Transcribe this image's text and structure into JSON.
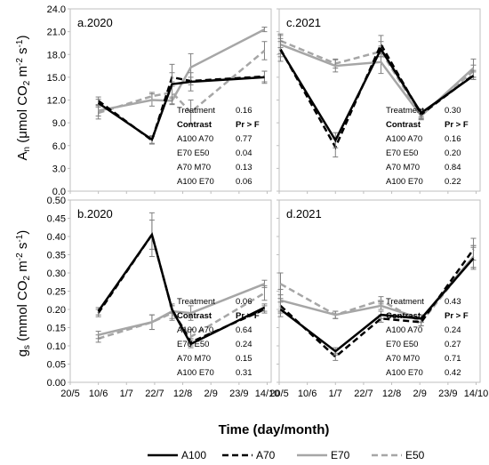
{
  "figure": {
    "xlabel": "Time (day/month)",
    "ylabel_top": "An (μmol CO2 m⁻² s⁻¹)",
    "ylabel_bottom": "gs (mmol CO2 m⁻² s⁻¹)"
  },
  "legend": {
    "placement": "bottom",
    "entries": [
      {
        "name": "A100",
        "color": "#000000",
        "dash": "solid"
      },
      {
        "name": "A70",
        "color": "#000000",
        "dash": "dashed"
      },
      {
        "name": "E70",
        "color": "#a6a6a6",
        "dash": "solid"
      },
      {
        "name": "E50",
        "color": "#a6a6a6",
        "dash": "dashed"
      }
    ]
  },
  "chart_data": [
    {
      "type": "line",
      "panel": "a.2020",
      "ylim": [
        0,
        24
      ],
      "yticks": [
        "0.0",
        "3.0",
        "6.0",
        "9.0",
        "12.0",
        "15.0",
        "18.0",
        "21.0",
        "24.0"
      ],
      "xlim_days": [
        140,
        290
      ],
      "series": [
        {
          "name": "A100",
          "x": [
            161,
            201,
            216,
            230,
            285
          ],
          "y": [
            11.6,
            6.8,
            14.1,
            14.4,
            15.0
          ],
          "err": [
            0.5,
            0.5,
            2.6,
            1.2,
            0.8
          ]
        },
        {
          "name": "A70",
          "x": [
            161,
            201,
            216,
            230,
            285
          ],
          "y": [
            11.9,
            6.7,
            15.0,
            14.5,
            15.1
          ],
          "err": [
            0.5,
            0.5,
            0.6,
            0.5,
            0.7
          ]
        },
        {
          "name": "E70",
          "x": [
            161,
            201,
            216,
            230,
            285
          ],
          "y": [
            10.6,
            12.0,
            11.9,
            16.3,
            21.3
          ],
          "err": [
            0.7,
            0.8,
            0.5,
            1.8,
            0.3
          ]
        },
        {
          "name": "E50",
          "x": [
            161,
            201,
            216,
            230,
            285
          ],
          "y": [
            10.3,
            12.5,
            13.0,
            10.4,
            18.5
          ],
          "err": [
            0.8,
            0.5,
            0.8,
            1.6,
            1.2
          ]
        }
      ],
      "stats": [
        {
          "label": "Treatment",
          "value": "0.16",
          "bold": false
        },
        {
          "label": "Contrast",
          "value": "Pr > F",
          "bold": true
        },
        {
          "label": "A100 A70",
          "value": "0.77",
          "bold": false
        },
        {
          "label": "E70 E50",
          "value": "0.04",
          "bold": false
        },
        {
          "label": "A70 M70",
          "value": "0.13",
          "bold": false
        },
        {
          "label": "A100 E70",
          "value": "0.06",
          "bold": false
        }
      ]
    },
    {
      "type": "line",
      "panel": "c.2021",
      "ylim": [
        0,
        24
      ],
      "yticks": [],
      "xlim_days": [
        140,
        290
      ],
      "series": [
        {
          "name": "A100",
          "x": [
            141,
            182,
            216,
            246,
            285
          ],
          "y": [
            18.6,
            6.7,
            18.7,
            10.3,
            15.2
          ],
          "err": [
            1.5,
            1.0,
            1.0,
            0.5,
            0.5
          ]
        },
        {
          "name": "A70",
          "x": [
            141,
            182,
            216,
            246,
            285
          ],
          "y": [
            18.7,
            5.8,
            19.3,
            10.1,
            15.3
          ],
          "err": [
            1.0,
            1.3,
            1.2,
            0.6,
            0.6
          ]
        },
        {
          "name": "E70",
          "x": [
            141,
            182,
            216,
            246,
            285
          ],
          "y": [
            19.3,
            16.5,
            17.0,
            9.9,
            16.2
          ],
          "err": [
            1.2,
            0.8,
            1.5,
            0.5,
            1.2
          ]
        },
        {
          "name": "E50",
          "x": [
            141,
            182,
            216,
            246,
            285
          ],
          "y": [
            19.8,
            16.8,
            18.4,
            10.0,
            15.8
          ],
          "err": [
            0.9,
            0.6,
            0.7,
            0.4,
            0.8
          ]
        }
      ],
      "stats": [
        {
          "label": "Treatment",
          "value": "0.30",
          "bold": false
        },
        {
          "label": "Contrast",
          "value": "Pr > F",
          "bold": true
        },
        {
          "label": "A100 A70",
          "value": "0.16",
          "bold": false
        },
        {
          "label": "E70 E50",
          "value": "0.20",
          "bold": false
        },
        {
          "label": "A70 M70",
          "value": "0.84",
          "bold": false
        },
        {
          "label": "A100 E70",
          "value": "0.22",
          "bold": false
        }
      ]
    },
    {
      "type": "line",
      "panel": "b.2020",
      "ylim": [
        0,
        0.5
      ],
      "yticks": [
        "0.00",
        "0.05",
        "0.10",
        "0.15",
        "0.20",
        "0.25",
        "0.30",
        "0.35",
        "0.40",
        "0.45",
        "0.50"
      ],
      "xlim_days": [
        140,
        290
      ],
      "xticks": [
        "20/5",
        "10/6",
        "1/7",
        "22/7",
        "12/8",
        "2/9",
        "23/9",
        "14/10"
      ],
      "series": [
        {
          "name": "A100",
          "x": [
            161,
            201,
            216,
            230,
            285
          ],
          "y": [
            0.195,
            0.405,
            0.2,
            0.105,
            0.205
          ],
          "err": [
            0.01,
            0.04,
            0.01,
            0.01,
            0.01
          ]
        },
        {
          "name": "A70",
          "x": [
            161,
            201,
            216,
            230,
            285
          ],
          "y": [
            0.19,
            0.405,
            0.2,
            0.11,
            0.2
          ],
          "err": [
            0.01,
            0.06,
            0.01,
            0.01,
            0.01
          ]
        },
        {
          "name": "E70",
          "x": [
            161,
            201,
            216,
            230,
            285
          ],
          "y": [
            0.13,
            0.165,
            0.195,
            0.19,
            0.27
          ],
          "err": [
            0.01,
            0.02,
            0.02,
            0.02,
            0.01
          ]
        },
        {
          "name": "E50",
          "x": [
            161,
            201,
            216,
            230,
            285
          ],
          "y": [
            0.12,
            0.165,
            0.19,
            0.125,
            0.245
          ],
          "err": [
            0.01,
            0.02,
            0.02,
            0.02,
            0.02
          ]
        }
      ],
      "stats": [
        {
          "label": "Treatment",
          "value": "0.06",
          "bold": false
        },
        {
          "label": "Contrast",
          "value": "Pr > F",
          "bold": true
        },
        {
          "label": "A100 A70",
          "value": "0.64",
          "bold": false
        },
        {
          "label": "E70 E50",
          "value": "0.24",
          "bold": false
        },
        {
          "label": "A70 M70",
          "value": "0.15",
          "bold": false
        },
        {
          "label": "A100 E70",
          "value": "0.31",
          "bold": false
        }
      ]
    },
    {
      "type": "line",
      "panel": "d.2021",
      "ylim": [
        0,
        0.5
      ],
      "yticks": [],
      "xlim_days": [
        140,
        290
      ],
      "xticks": [
        "20/5",
        "10/6",
        "1/7",
        "22/7",
        "12/8",
        "2/9",
        "23/9",
        "14/10"
      ],
      "series": [
        {
          "name": "A100",
          "x": [
            141,
            182,
            216,
            246,
            285
          ],
          "y": [
            0.2,
            0.085,
            0.185,
            0.175,
            0.34
          ],
          "err": [
            0.02,
            0.01,
            0.01,
            0.01,
            0.03
          ]
        },
        {
          "name": "A70",
          "x": [
            141,
            182,
            216,
            246,
            285
          ],
          "y": [
            0.21,
            0.07,
            0.175,
            0.165,
            0.365
          ],
          "err": [
            0.02,
            0.01,
            0.01,
            0.01,
            0.03
          ]
        },
        {
          "name": "E70",
          "x": [
            141,
            182,
            216,
            246,
            285
          ],
          "y": [
            0.225,
            0.185,
            0.21,
            0.175,
            0.345
          ],
          "err": [
            0.03,
            0.01,
            0.01,
            0.01,
            0.03
          ]
        },
        {
          "name": "E50",
          "x": [
            141,
            182,
            216,
            246,
            285
          ],
          "y": [
            0.27,
            0.185,
            0.225,
            0.165,
            0.345
          ],
          "err": [
            0.03,
            0.01,
            0.01,
            0.01,
            0.03
          ]
        }
      ],
      "stats": [
        {
          "label": "Treatment",
          "value": "0.43",
          "bold": false
        },
        {
          "label": "Contrast",
          "value": "Pr > F",
          "bold": true
        },
        {
          "label": "A100 A70",
          "value": "0.24",
          "bold": false
        },
        {
          "label": "E70 E50",
          "value": "0.27",
          "bold": false
        },
        {
          "label": "A70 M70",
          "value": "0.71",
          "bold": false
        },
        {
          "label": "A100 E70",
          "value": "0.42",
          "bold": false
        }
      ]
    }
  ]
}
